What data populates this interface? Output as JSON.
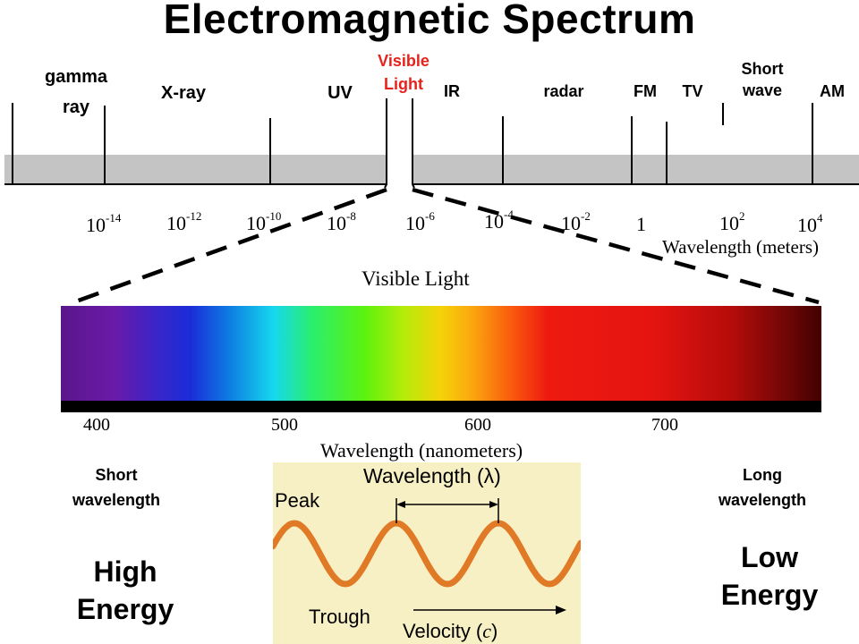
{
  "title": "Electromagnetic Spectrum",
  "bands": {
    "gamma_line1": "gamma",
    "gamma_line2": "ray",
    "xray": "X-ray",
    "uv": "UV",
    "visible_line1": "Visible",
    "visible_line2": "Light",
    "ir": "IR",
    "radar": "radar",
    "fm": "FM",
    "tv": "TV",
    "shortwave_line1": "Short",
    "shortwave_line2": "wave",
    "am": "AM"
  },
  "wavelength_scale": {
    "base": "10",
    "exponents": [
      "-14",
      "-12",
      "-10",
      "-8",
      "-6",
      "-4",
      "-2"
    ],
    "one": "1",
    "exp_2": "2",
    "exp_4": "4",
    "axis_label": "Wavelength (meters)"
  },
  "visible_section": {
    "title": "Visible Light",
    "nm_ticks": [
      "400",
      "500",
      "600",
      "700"
    ],
    "axis_label": "Wavelength (nanometers)"
  },
  "left_side": {
    "line1": "Short",
    "line2": "wavelength",
    "energy1": "High",
    "energy2": "Energy"
  },
  "right_side": {
    "line1": "Long",
    "line2": "wavelength",
    "energy1": "Low",
    "energy2": "Energy"
  },
  "wave_diagram": {
    "wavelength_label": "Wavelength (λ)",
    "peak": "Peak",
    "trough": "Trough",
    "velocity_label": "Velocity (",
    "velocity_symbol": "c",
    "velocity_close": ")"
  },
  "colors": {
    "visible_label": "#e8221b",
    "wave": "#e07a26",
    "wave_bg": "#f7f0c4"
  }
}
